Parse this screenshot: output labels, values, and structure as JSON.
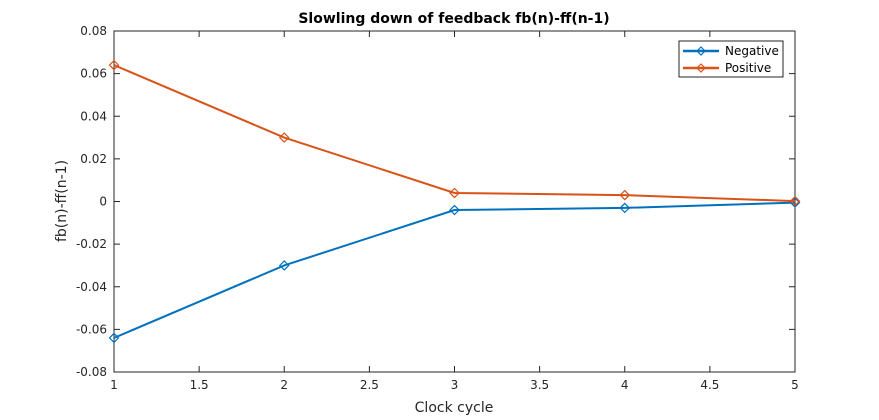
{
  "chart_data": {
    "type": "line",
    "title": "Slowling down of feedback fb(n)-ff(n-1)",
    "xlabel": "Clock cycle",
    "ylabel": "fb(n)-ff(n-1)",
    "xlim": [
      1,
      5
    ],
    "ylim": [
      -0.08,
      0.08
    ],
    "xticks": [
      1,
      1.5,
      2,
      2.5,
      3,
      3.5,
      4,
      4.5,
      5
    ],
    "xtick_labels": [
      "1",
      "1.5",
      "2",
      "2.5",
      "3",
      "3.5",
      "4",
      "4.5",
      "5"
    ],
    "yticks": [
      -0.08,
      -0.06,
      -0.04,
      -0.02,
      0,
      0.02,
      0.04,
      0.06,
      0.08
    ],
    "ytick_labels": [
      "-0.08",
      "-0.06",
      "-0.04",
      "-0.02",
      "0",
      "0.02",
      "0.04",
      "0.06",
      "0.08"
    ],
    "grid": false,
    "legend_position": "top-right",
    "x": [
      1,
      2,
      3,
      4,
      5
    ],
    "series": [
      {
        "name": "Negative",
        "color": "#0072BD",
        "marker": "diamond",
        "values": [
          -0.064,
          -0.03,
          -0.004,
          -0.003,
          -0.0005
        ]
      },
      {
        "name": "Positive",
        "color": "#D95319",
        "marker": "diamond",
        "values": [
          0.064,
          0.03,
          0.004,
          0.003,
          0.0002
        ]
      }
    ]
  }
}
